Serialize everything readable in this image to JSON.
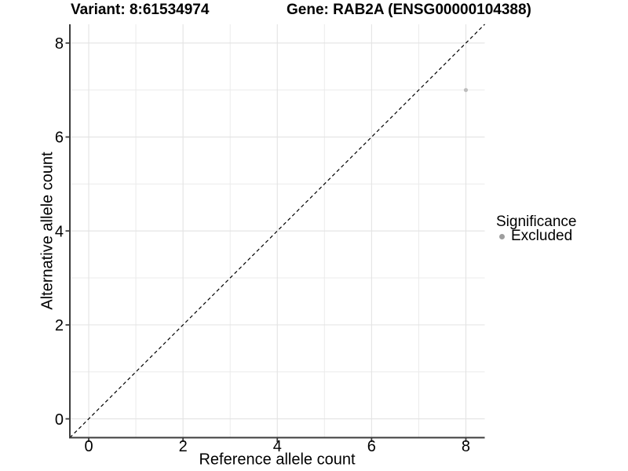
{
  "header": {
    "variant_title": "Variant: 8:61534974",
    "gene_title": "Gene: RAB2A (ENSG00000104388)"
  },
  "chart_data": {
    "type": "scatter",
    "title_left": "Variant: 8:61534974",
    "title_right": "Gene: RAB2A (ENSG00000104388)",
    "xlabel": "Reference allele count",
    "ylabel": "Alternative allele count",
    "xlim": [
      -0.4,
      8.4
    ],
    "ylim": [
      -0.4,
      8.4
    ],
    "x_major_ticks": [
      0,
      2,
      4,
      6,
      8
    ],
    "y_major_ticks": [
      0,
      2,
      4,
      6,
      8
    ],
    "x_minor_gridlines": [
      1,
      3,
      5,
      7
    ],
    "y_minor_gridlines": [
      1,
      3,
      5,
      7
    ],
    "grid": "on",
    "legend_position": "right",
    "identity_line": {
      "style": "dashed",
      "from": [
        -0.4,
        -0.4
      ],
      "to": [
        8.4,
        8.4
      ],
      "color": "#000000"
    },
    "series": [
      {
        "name": "Excluded",
        "color": "#bdbdbd",
        "points": [
          {
            "x": 8,
            "y": 7
          }
        ]
      }
    ]
  },
  "legend": {
    "title": "Significance",
    "items": [
      {
        "label": "Excluded",
        "color": "#9e9e9e",
        "swatch": "dot"
      }
    ]
  },
  "colors": {
    "background": "#ffffff",
    "grid_major": "#e3e3e3",
    "grid_minor": "#ebebeb",
    "axis_line": "#3c3c3c",
    "text": "#000000"
  }
}
